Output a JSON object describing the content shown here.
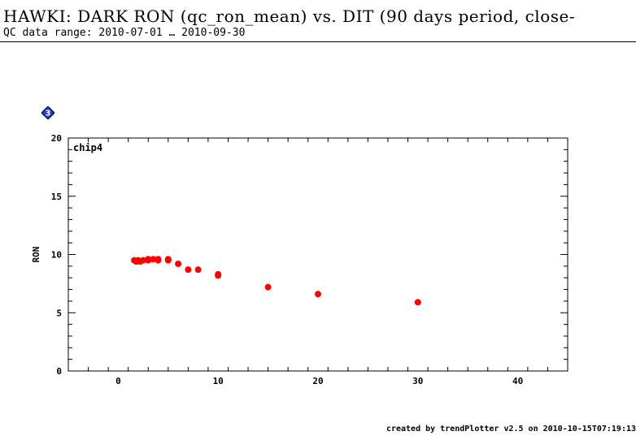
{
  "header": {
    "title": "HAWKI: DARK RON (qc_ron_mean) vs. DIT (90 days period, close-",
    "subtitle": "QC data range: 2010-07-01 … 2010-09-30"
  },
  "badge": {
    "icon": "diamond-badge-icon",
    "label": "3",
    "color": "#1f3fd6"
  },
  "footer": {
    "text": "created by trendPlotter v2.5 on 2010-10-15T07:19:13"
  },
  "chart_data": {
    "type": "scatter",
    "panel_label": "chip4",
    "xlabel": "",
    "ylabel": "RON",
    "xlim": [
      -5,
      45
    ],
    "ylim": [
      0,
      20
    ],
    "xticks": [
      0,
      10,
      20,
      30,
      40
    ],
    "yticks": [
      0,
      5,
      10,
      15,
      20
    ],
    "grid": false,
    "marker_color": "#ff0000",
    "x": [
      1.6,
      1.8,
      2.0,
      2.2,
      2.5,
      3.0,
      3.0,
      3.5,
      4.0,
      4.0,
      5.0,
      5.0,
      6.0,
      7.0,
      8.0,
      10.0,
      10.0,
      15.0,
      20.0,
      30.0
    ],
    "y": [
      9.5,
      9.4,
      9.5,
      9.4,
      9.5,
      9.5,
      9.6,
      9.6,
      9.5,
      9.6,
      9.5,
      9.6,
      9.2,
      8.7,
      8.7,
      8.3,
      8.2,
      7.2,
      6.6,
      5.9
    ]
  }
}
